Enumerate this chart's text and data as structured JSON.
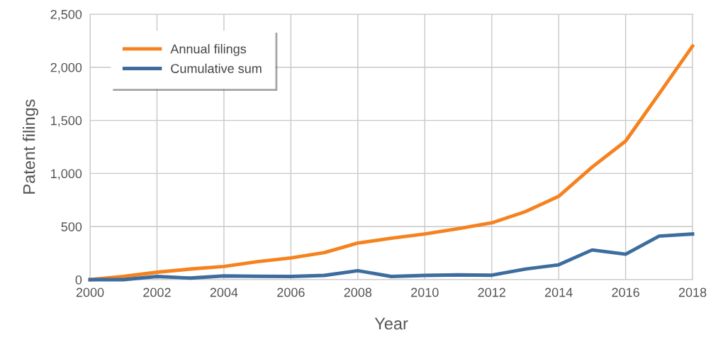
{
  "chart_data": {
    "type": "line",
    "xlabel": "Year",
    "ylabel": "Patent filings",
    "x": [
      2000,
      2001,
      2002,
      2003,
      2004,
      2005,
      2006,
      2007,
      2008,
      2009,
      2010,
      2011,
      2012,
      2013,
      2014,
      2015,
      2016,
      2017,
      2018
    ],
    "series": [
      {
        "name": "Annual filings",
        "color": "#f5821f",
        "values": [
          0,
          30,
          70,
          100,
          125,
          170,
          205,
          255,
          345,
          390,
          430,
          480,
          535,
          640,
          785,
          1060,
          1305,
          1750,
          2200
        ]
      },
      {
        "name": "Cumulative sum",
        "color": "#3d6d9e",
        "values": [
          0,
          0,
          30,
          15,
          35,
          32,
          30,
          40,
          85,
          30,
          40,
          45,
          42,
          100,
          140,
          280,
          240,
          410,
          430
        ]
      }
    ],
    "xlim": [
      2000,
      2018
    ],
    "xticks": [
      2000,
      2002,
      2004,
      2006,
      2008,
      2010,
      2012,
      2014,
      2016,
      2018
    ],
    "ylim": [
      0,
      2500
    ],
    "yticks": [
      {
        "value": 0,
        "label": "0"
      },
      {
        "value": 500,
        "label": "500"
      },
      {
        "value": 1000,
        "label": "1,000"
      },
      {
        "value": 1500,
        "label": "1,500"
      },
      {
        "value": 2000,
        "label": "2,000"
      },
      {
        "value": 2500,
        "label": "2,500"
      }
    ],
    "grid": true,
    "legend": "top left",
    "marker": "none",
    "line_style": "solid"
  }
}
